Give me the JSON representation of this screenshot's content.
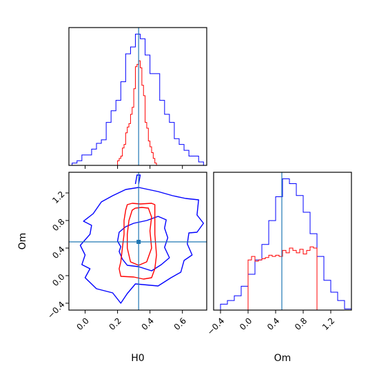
{
  "chart_data": [
    {
      "type": "histogram",
      "panel": "top-left",
      "variable": "H0",
      "xlim": [
        -0.1,
        0.75
      ],
      "x_ticks": [
        0.0,
        0.2,
        0.4,
        0.6
      ],
      "truth": 0.33,
      "y_ticks_shown": false,
      "series": [
        {
          "color": "#0000ff",
          "bin_edges": [
            -0.08,
            -0.05,
            -0.02,
            0.01,
            0.04,
            0.07,
            0.1,
            0.13,
            0.16,
            0.19,
            0.22,
            0.25,
            0.28,
            0.31,
            0.34,
            0.37,
            0.4,
            0.43,
            0.46,
            0.49,
            0.52,
            0.55,
            0.58,
            0.61,
            0.64,
            0.67,
            0.7,
            0.73
          ],
          "counts": [
            2,
            4,
            9,
            9,
            14,
            19,
            22,
            37,
            47,
            56,
            72,
            96,
            102,
            113,
            109,
            95,
            79,
            79,
            56,
            44,
            37,
            23,
            18,
            13,
            8,
            8,
            3
          ]
        },
        {
          "color": "#ff0000",
          "bin_edges": [
            0.2,
            0.21,
            0.22,
            0.23,
            0.24,
            0.25,
            0.26,
            0.27,
            0.28,
            0.29,
            0.3,
            0.31,
            0.32,
            0.33,
            0.34,
            0.35,
            0.36,
            0.37,
            0.38,
            0.39,
            0.4,
            0.41,
            0.42,
            0.43,
            0.44
          ],
          "counts": [
            4,
            6,
            8,
            15,
            18,
            28,
            33,
            36,
            44,
            50,
            66,
            85,
            87,
            90,
            84,
            69,
            60,
            37,
            32,
            21,
            16,
            11,
            6,
            2
          ]
        }
      ]
    },
    {
      "type": "contour",
      "panel": "bottom-left",
      "x_variable": "H0",
      "y_variable": "Om",
      "xlabel": "H0",
      "ylabel": "Om",
      "xlim": [
        -0.1,
        0.75
      ],
      "ylim": [
        -0.5,
        1.5
      ],
      "x_ticks": [
        0.0,
        0.2,
        0.4,
        0.6
      ],
      "y_ticks": [
        -0.4,
        0.0,
        0.4,
        0.8,
        1.2
      ],
      "truth": {
        "x": 0.33,
        "y": 0.49
      },
      "contours": [
        {
          "color": "#0000ff",
          "level": "outer",
          "points": [
            [
              0.33,
              1.28
            ],
            [
              0.45,
              1.22
            ],
            [
              0.54,
              1.16
            ],
            [
              0.62,
              1.12
            ],
            [
              0.7,
              1.1
            ],
            [
              0.69,
              0.88
            ],
            [
              0.73,
              0.76
            ],
            [
              0.69,
              0.63
            ],
            [
              0.64,
              0.62
            ],
            [
              0.63,
              0.46
            ],
            [
              0.66,
              0.3
            ],
            [
              0.61,
              0.22
            ],
            [
              0.59,
              0.05
            ],
            [
              0.53,
              -0.03
            ],
            [
              0.45,
              -0.15
            ],
            [
              0.31,
              -0.12
            ],
            [
              0.26,
              -0.26
            ],
            [
              0.22,
              -0.4
            ],
            [
              0.17,
              -0.25
            ],
            [
              0.07,
              -0.19
            ],
            [
              0.0,
              -0.03
            ],
            [
              0.03,
              0.1
            ],
            [
              -0.02,
              0.16
            ],
            [
              0.0,
              0.3
            ],
            [
              -0.03,
              0.44
            ],
            [
              0.03,
              0.6
            ],
            [
              0.04,
              0.73
            ],
            [
              -0.01,
              0.79
            ],
            [
              0.05,
              0.9
            ],
            [
              0.1,
              1.07
            ],
            [
              0.17,
              1.16
            ],
            [
              0.25,
              1.25
            ],
            [
              0.33,
              1.28
            ]
          ]
        },
        {
          "color": "#0000ff",
          "level": "stub",
          "points": [
            [
              0.31,
              1.33
            ],
            [
              0.32,
              1.46
            ],
            [
              0.34,
              1.46
            ],
            [
              0.33,
              1.33
            ]
          ]
        },
        {
          "color": "#0000ff",
          "level": "inner",
          "points": [
            [
              0.38,
              0.8
            ],
            [
              0.45,
              0.86
            ],
            [
              0.5,
              0.81
            ],
            [
              0.49,
              0.69
            ],
            [
              0.51,
              0.55
            ],
            [
              0.49,
              0.41
            ],
            [
              0.52,
              0.26
            ],
            [
              0.47,
              0.16
            ],
            [
              0.41,
              0.07
            ],
            [
              0.33,
              0.13
            ],
            [
              0.26,
              0.15
            ],
            [
              0.23,
              0.24
            ],
            [
              0.21,
              0.35
            ],
            [
              0.22,
              0.42
            ],
            [
              0.2,
              0.5
            ],
            [
              0.21,
              0.63
            ],
            [
              0.25,
              0.71
            ],
            [
              0.3,
              0.76
            ],
            [
              0.38,
              0.8
            ]
          ]
        },
        {
          "color": "#ff0000",
          "level": "outer",
          "points": [
            [
              0.29,
              1.05
            ],
            [
              0.34,
              1.04
            ],
            [
              0.41,
              1.05
            ],
            [
              0.43,
              1.03
            ],
            [
              0.43,
              0.8
            ],
            [
              0.43,
              0.6
            ],
            [
              0.44,
              0.3
            ],
            [
              0.43,
              0.1
            ],
            [
              0.41,
              -0.03
            ],
            [
              0.36,
              -0.05
            ],
            [
              0.3,
              -0.02
            ],
            [
              0.22,
              -0.01
            ],
            [
              0.21,
              0.1
            ],
            [
              0.22,
              0.2
            ],
            [
              0.23,
              0.4
            ],
            [
              0.24,
              0.6
            ],
            [
              0.24,
              0.8
            ],
            [
              0.25,
              0.95
            ],
            [
              0.26,
              1.03
            ],
            [
              0.29,
              1.05
            ]
          ]
        },
        {
          "color": "#ff0000",
          "level": "inner",
          "points": [
            [
              0.31,
              0.98
            ],
            [
              0.35,
              0.99
            ],
            [
              0.39,
              0.98
            ],
            [
              0.41,
              0.85
            ],
            [
              0.4,
              0.65
            ],
            [
              0.41,
              0.4
            ],
            [
              0.38,
              0.2
            ],
            [
              0.33,
              0.15
            ],
            [
              0.28,
              0.2
            ],
            [
              0.26,
              0.4
            ],
            [
              0.26,
              0.6
            ],
            [
              0.27,
              0.8
            ],
            [
              0.29,
              0.95
            ],
            [
              0.31,
              0.98
            ]
          ]
        }
      ]
    },
    {
      "type": "histogram",
      "panel": "bottom-right",
      "variable": "Om",
      "xlabel": "Om",
      "xlim": [
        -0.5,
        1.5
      ],
      "x_ticks": [
        -0.4,
        0.0,
        0.4,
        0.8,
        1.2
      ],
      "truth": 0.49,
      "y_ticks_shown": false,
      "series": [
        {
          "color": "#0000ff",
          "bin_edges": [
            -0.4,
            -0.3,
            -0.2,
            -0.1,
            0.0,
            0.1,
            0.2,
            0.3,
            0.4,
            0.5,
            0.6,
            0.7,
            0.8,
            0.9,
            1.0,
            1.1,
            1.2,
            1.3,
            1.4,
            1.5
          ],
          "counts": [
            5,
            8,
            12,
            20,
            30,
            42,
            55,
            75,
            95,
            110,
            106,
            96,
            82,
            64,
            45,
            25,
            15,
            8,
            1
          ]
        },
        {
          "color": "#ff0000",
          "bin_edges": [
            0.0,
            0.05,
            0.1,
            0.15,
            0.2,
            0.25,
            0.3,
            0.35,
            0.4,
            0.45,
            0.5,
            0.55,
            0.6,
            0.65,
            0.7,
            0.75,
            0.8,
            0.85,
            0.9,
            0.95,
            1.0
          ],
          "counts": [
            42,
            45,
            41,
            42,
            43,
            44,
            46,
            45,
            46,
            45,
            50,
            48,
            52,
            50,
            48,
            51,
            47,
            50,
            53,
            52
          ]
        }
      ]
    }
  ]
}
